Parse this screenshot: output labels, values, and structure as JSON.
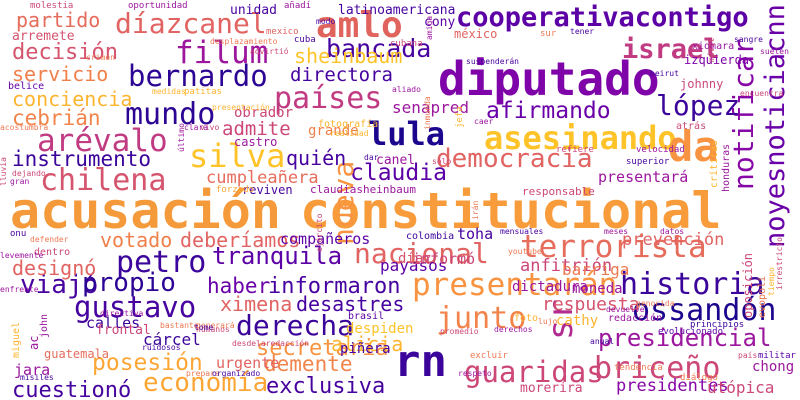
{
  "colors": {
    "background": "#ffffff",
    "palette": [
      "#0d0887",
      "#5c01a6",
      "#9c179e",
      "#cc4778",
      "#ed7953",
      "#fdb42f",
      "#f0f921"
    ]
  },
  "words": [
    {
      "t": "acusación",
      "c": "#f59a3a"
    },
    {
      "t": "constitucional",
      "c": "#f79b3b"
    },
    {
      "t": "diputado",
      "c": "#7e03a8"
    },
    {
      "t": "rn",
      "c": "#3b049a"
    },
    {
      "t": "cooperativacontigo",
      "c": "#5c01a6"
    },
    {
      "t": "díazcanel",
      "c": "#e16462"
    },
    {
      "t": "amlo",
      "c": "#e0645d"
    },
    {
      "t": "filum",
      "c": "#9c179e"
    },
    {
      "t": "bernardo",
      "c": "#2c0594"
    },
    {
      "t": "bancada",
      "c": "#47039f"
    },
    {
      "t": "israel",
      "c": "#c13b82"
    },
    {
      "t": "partido",
      "c": "#e66c5c"
    },
    {
      "t": "decisión",
      "c": "#d5546e"
    },
    {
      "t": "servicio",
      "c": "#f0804a"
    },
    {
      "t": "conciencia",
      "c": "#fdb42f"
    },
    {
      "t": "cebrián",
      "c": "#f2844b"
    },
    {
      "t": "mundo",
      "c": "#2c0594"
    },
    {
      "t": "países",
      "c": "#c13b82"
    },
    {
      "t": "arévalo",
      "c": "#c13b82"
    },
    {
      "t": "lula",
      "c": "#1b068d"
    },
    {
      "t": "silva",
      "c": "#fdc328"
    },
    {
      "t": "asesinando",
      "c": "#fdc328"
    },
    {
      "t": "da",
      "c": "#f89441"
    },
    {
      "t": "democracia",
      "c": "#e16462"
    },
    {
      "t": "instrumento",
      "c": "#3b049a"
    },
    {
      "t": "chilena",
      "c": "#d5546e"
    },
    {
      "t": "claudia",
      "c": "#5c01a6"
    },
    {
      "t": "notificar",
      "c": "#8606a6"
    },
    {
      "t": "noyesnoticiacnn",
      "c": "#6a00a8"
    },
    {
      "t": "afirmando",
      "c": "#6a00a8"
    },
    {
      "t": "lópez",
      "c": "#3b049a"
    },
    {
      "t": "sheinbaum",
      "c": "#fdc328"
    },
    {
      "t": "directora",
      "c": "#47039f"
    },
    {
      "t": "nueva",
      "c": "#f89441"
    },
    {
      "t": "petro",
      "c": "#3b049a"
    },
    {
      "t": "tranquila",
      "c": "#5c01a6"
    },
    {
      "t": "nacional",
      "c": "#e16462"
    },
    {
      "t": "terrorista",
      "c": "#e66c5c"
    },
    {
      "t": "historia",
      "c": "#3b049a"
    },
    {
      "t": "presentarán",
      "c": "#f89441"
    },
    {
      "t": "ossandón",
      "c": "#1b068d"
    },
    {
      "t": "junto",
      "c": "#f2844b"
    },
    {
      "t": "gustavo",
      "c": "#47039f"
    },
    {
      "t": "derecha",
      "c": "#3b049a"
    },
    {
      "t": "ximena",
      "c": "#e16462"
    },
    {
      "t": "informaron",
      "c": "#47039f"
    },
    {
      "t": "haber",
      "c": "#6a00a8"
    },
    {
      "t": "viajó",
      "c": "#47039f"
    },
    {
      "t": "propio",
      "c": "#2c0594"
    },
    {
      "t": "designó",
      "c": "#e16462"
    },
    {
      "t": "votado",
      "c": "#f0804a"
    },
    {
      "t": "deberíamos",
      "c": "#e16462"
    },
    {
      "t": "prevención",
      "c": "#e16462"
    },
    {
      "t": "presidencial",
      "c": "#9c179e"
    },
    {
      "t": "economía",
      "c": "#fca636"
    },
    {
      "t": "posesión",
      "c": "#fca636"
    },
    {
      "t": "cuestionó",
      "c": "#47039f"
    },
    {
      "t": "secretaria",
      "c": "#f89441"
    },
    {
      "t": "demente",
      "c": "#f2844b"
    },
    {
      "t": "alicia",
      "c": "#fdb42f"
    },
    {
      "t": "exclusiva",
      "c": "#47039f"
    },
    {
      "t": "guaridas",
      "c": "#cc4778"
    },
    {
      "t": "briceño",
      "c": "#cc4778"
    },
    {
      "t": "sr",
      "c": "#b12a90"
    },
    {
      "t": "desastres",
      "c": "#47039f"
    },
    {
      "t": "admite",
      "c": "#cc4778"
    },
    {
      "t": "quién",
      "c": "#47039f"
    },
    {
      "t": "cumpleañera",
      "c": "#e66c5c"
    },
    {
      "t": "senapred",
      "c": "#9c179e"
    },
    {
      "t": "compañeros",
      "c": "#5c01a6"
    },
    {
      "t": "anfitrión",
      "c": "#cc4778"
    },
    {
      "t": "respuesta",
      "c": "#d5546e"
    },
    {
      "t": "presidentes",
      "c": "#8606a6"
    },
    {
      "t": "toha",
      "c": "#47039f"
    },
    {
      "t": "dictadura",
      "c": "#9c179e"
    },
    {
      "t": "barriga",
      "c": "#ed7953"
    },
    {
      "t": "moneda",
      "c": "#9c179e"
    },
    {
      "t": "payasos",
      "c": "#5c01a6"
    },
    {
      "t": "díaz",
      "c": "#d5546e"
    },
    {
      "t": "informó",
      "c": "#cc4778"
    },
    {
      "t": "grande",
      "c": "#f0804a"
    },
    {
      "t": "castro",
      "c": "#9c179e"
    },
    {
      "t": "canel",
      "c": "#9c179e"
    },
    {
      "t": "presentará",
      "c": "#9c179e"
    },
    {
      "t": "piñera",
      "c": "#47039f"
    },
    {
      "t": "urgente",
      "c": "#e16462"
    },
    {
      "t": "cárcel",
      "c": "#3b049a"
    },
    {
      "t": "calles",
      "c": "#3b049a"
    },
    {
      "t": "frontal",
      "c": "#cc4778"
    },
    {
      "t": "guatemala",
      "c": "#e66c5c"
    },
    {
      "t": "jara",
      "c": "#9c179e"
    },
    {
      "t": "cathy",
      "c": "#fdb42f"
    },
    {
      "t": "chong",
      "c": "#9c179e"
    },
    {
      "t": "utópica",
      "c": "#cc4778"
    },
    {
      "t": "morerira",
      "c": "#cc4778"
    },
    {
      "t": "despiden",
      "c": "#fdc328"
    },
    {
      "t": "arremete",
      "c": "#d5546e"
    },
    {
      "t": "unidad",
      "c": "#47039f"
    },
    {
      "t": "latinoamericana",
      "c": "#47039f"
    },
    {
      "t": "cony",
      "c": "#5c01a6"
    },
    {
      "t": "méxico",
      "c": "#e16462"
    },
    {
      "t": "obrador",
      "c": "#cc4778"
    },
    {
      "t": "johnny",
      "c": "#cc4778"
    },
    {
      "t": "izquierda",
      "c": "#7e03a8"
    },
    {
      "t": "xiomara",
      "c": "#9c179e"
    },
    {
      "t": "claudiasheinbaum",
      "c": "#9c179e"
    },
    {
      "t": "reviven",
      "c": "#47039f"
    },
    {
      "t": "responsable",
      "c": "#cc4778"
    },
    {
      "t": "fotografía",
      "c": "#fdb42f"
    },
    {
      "t": "brasil",
      "c": "#5c01a6"
    },
    {
      "t": "belice",
      "c": "#5c01a6"
    },
    {
      "t": "oportunidad",
      "c": "#9c179e"
    },
    {
      "t": "molestia",
      "c": "#cc4778"
    },
    {
      "t": "añadí",
      "c": "#9c179e"
    },
    {
      "t": "mexico",
      "c": "#e16462"
    },
    {
      "t": "modo",
      "c": "#47039f"
    },
    {
      "t": "cuba",
      "c": "#47039f"
    },
    {
      "t": "cubana",
      "c": "#cc4778"
    },
    {
      "t": "sur",
      "c": "#ed7953"
    },
    {
      "t": "tener",
      "c": "#47039f"
    },
    {
      "t": "onu",
      "c": "#47039f"
    },
    {
      "t": "dentro",
      "c": "#cc4778"
    },
    {
      "t": "defender",
      "c": "#ed7953"
    },
    {
      "t": "colombia",
      "c": "#3b049a"
    },
    {
      "t": "youtube",
      "c": "#ed7953"
    },
    {
      "t": "datos",
      "c": "#9c179e"
    },
    {
      "t": "mensuales",
      "c": "#47039f"
    },
    {
      "t": "meses",
      "c": "#9c179e"
    },
    {
      "t": "forzado",
      "c": "#fca636"
    },
    {
      "t": "diálogo",
      "c": "#ed7953"
    },
    {
      "t": "militar",
      "c": "#5c01a6"
    },
    {
      "t": "país",
      "c": "#cc4778"
    },
    {
      "t": "velocidad",
      "c": "#9c179e"
    },
    {
      "t": "superior",
      "c": "#47039f"
    },
    {
      "t": "refiere",
      "c": "#cc4778"
    },
    {
      "t": "críticas",
      "c": "#fdb42f"
    },
    {
      "t": "honduras",
      "c": "#9c179e"
    },
    {
      "t": "atrás",
      "c": "#cc4778"
    },
    {
      "t": "evolucionado",
      "c": "#5c01a6"
    },
    {
      "t": "principios",
      "c": "#3b049a"
    },
    {
      "t": "tendencia",
      "c": "#ed7953"
    },
    {
      "t": "anual",
      "c": "#47039f"
    },
    {
      "t": "respeto",
      "c": "#9c179e"
    },
    {
      "t": "excluir",
      "c": "#ed7953"
    },
    {
      "t": "derechos",
      "c": "#9c179e"
    },
    {
      "t": "promedio",
      "c": "#cc4778"
    },
    {
      "t": "humanos",
      "c": "#cc4778"
    },
    {
      "t": "generará",
      "c": "#ed7953"
    },
    {
      "t": "bastante",
      "c": "#ed7953"
    },
    {
      "t": "directiva",
      "c": "#9c179e"
    },
    {
      "t": "tome",
      "c": "#47039f"
    },
    {
      "t": "prepara",
      "c": "#ed7953"
    },
    {
      "t": "ruidosos",
      "c": "#47039f"
    },
    {
      "t": "misiles",
      "c": "#47039f"
    },
    {
      "t": "miguel",
      "c": "#fdb42f"
    },
    {
      "t": "john",
      "c": "#9c179e"
    },
    {
      "t": "ac",
      "c": "#9c179e"
    },
    {
      "t": "enfrente",
      "c": "#9c179e"
    },
    {
      "t": "levemente",
      "c": "#9c179e"
    },
    {
      "t": "lluvia",
      "c": "#cc4778"
    },
    {
      "t": "gran",
      "c": "#9c179e"
    },
    {
      "t": "dejando",
      "c": "#cc4778"
    },
    {
      "t": "acostumbra",
      "c": "#ed7953"
    },
    {
      "t": "crimen",
      "c": "#ed7953"
    },
    {
      "t": "desplazamiento",
      "c": "#ed7953"
    },
    {
      "t": "patitas",
      "c": "#fdb42f"
    },
    {
      "t": "advirtió",
      "c": "#cc4778"
    },
    {
      "t": "aliado",
      "c": "#9c179e"
    },
    {
      "t": "suspenderán",
      "c": "#47039f"
    },
    {
      "t": "sangre",
      "c": "#47039f"
    },
    {
      "t": "suelen",
      "c": "#9c179e"
    },
    {
      "t": "encuentra",
      "c": "#cc4778"
    },
    {
      "t": "beirut",
      "c": "#47039f"
    },
    {
      "t": "móvil",
      "c": "#cc4778"
    },
    {
      "t": "presentación",
      "c": "#fdb42f"
    },
    {
      "t": "medidas",
      "c": "#fdb42f"
    },
    {
      "t": "vivo",
      "c": "#cc4778"
    },
    {
      "t": "clara",
      "c": "#9c179e"
    },
    {
      "t": "dar",
      "c": "#47039f"
    },
    {
      "t": "sólo",
      "c": "#cc4778"
    },
    {
      "t": "caer",
      "c": "#9c179e"
    },
    {
      "t": "jefa",
      "c": "#fdb42f"
    },
    {
      "t": "realidad",
      "c": "#fdb42f"
    },
    {
      "t": "ejército",
      "c": "#cc4778"
    },
    {
      "t": "irán",
      "c": "#ed7953"
    },
    {
      "t": "genocida",
      "c": "#ed7953"
    },
    {
      "t": "irrestricto",
      "c": "#cc4778"
    },
    {
      "t": "tiempo",
      "c": "#fdb42f"
    },
    {
      "t": "evopoli",
      "c": "#ed7953"
    },
    {
      "t": "oposición",
      "c": "#cc4778"
    },
    {
      "t": "redacción",
      "c": "#9c179e"
    },
    {
      "t": "devuelve",
      "c": "#9c179e"
    },
    {
      "t": "foto",
      "c": "#fdb42f"
    },
    {
      "t": "lujo",
      "c": "#ed7953"
    },
    {
      "t": "amiga",
      "c": "#9c179e"
    },
    {
      "t": "desdelaredacción",
      "c": "#cc4778"
    },
    {
      "t": "organizado",
      "c": "#47039f"
    },
    {
      "t": "inmunda",
      "c": "#ed7953"
    },
    {
      "t": "último",
      "c": "#9c179e"
    }
  ]
}
